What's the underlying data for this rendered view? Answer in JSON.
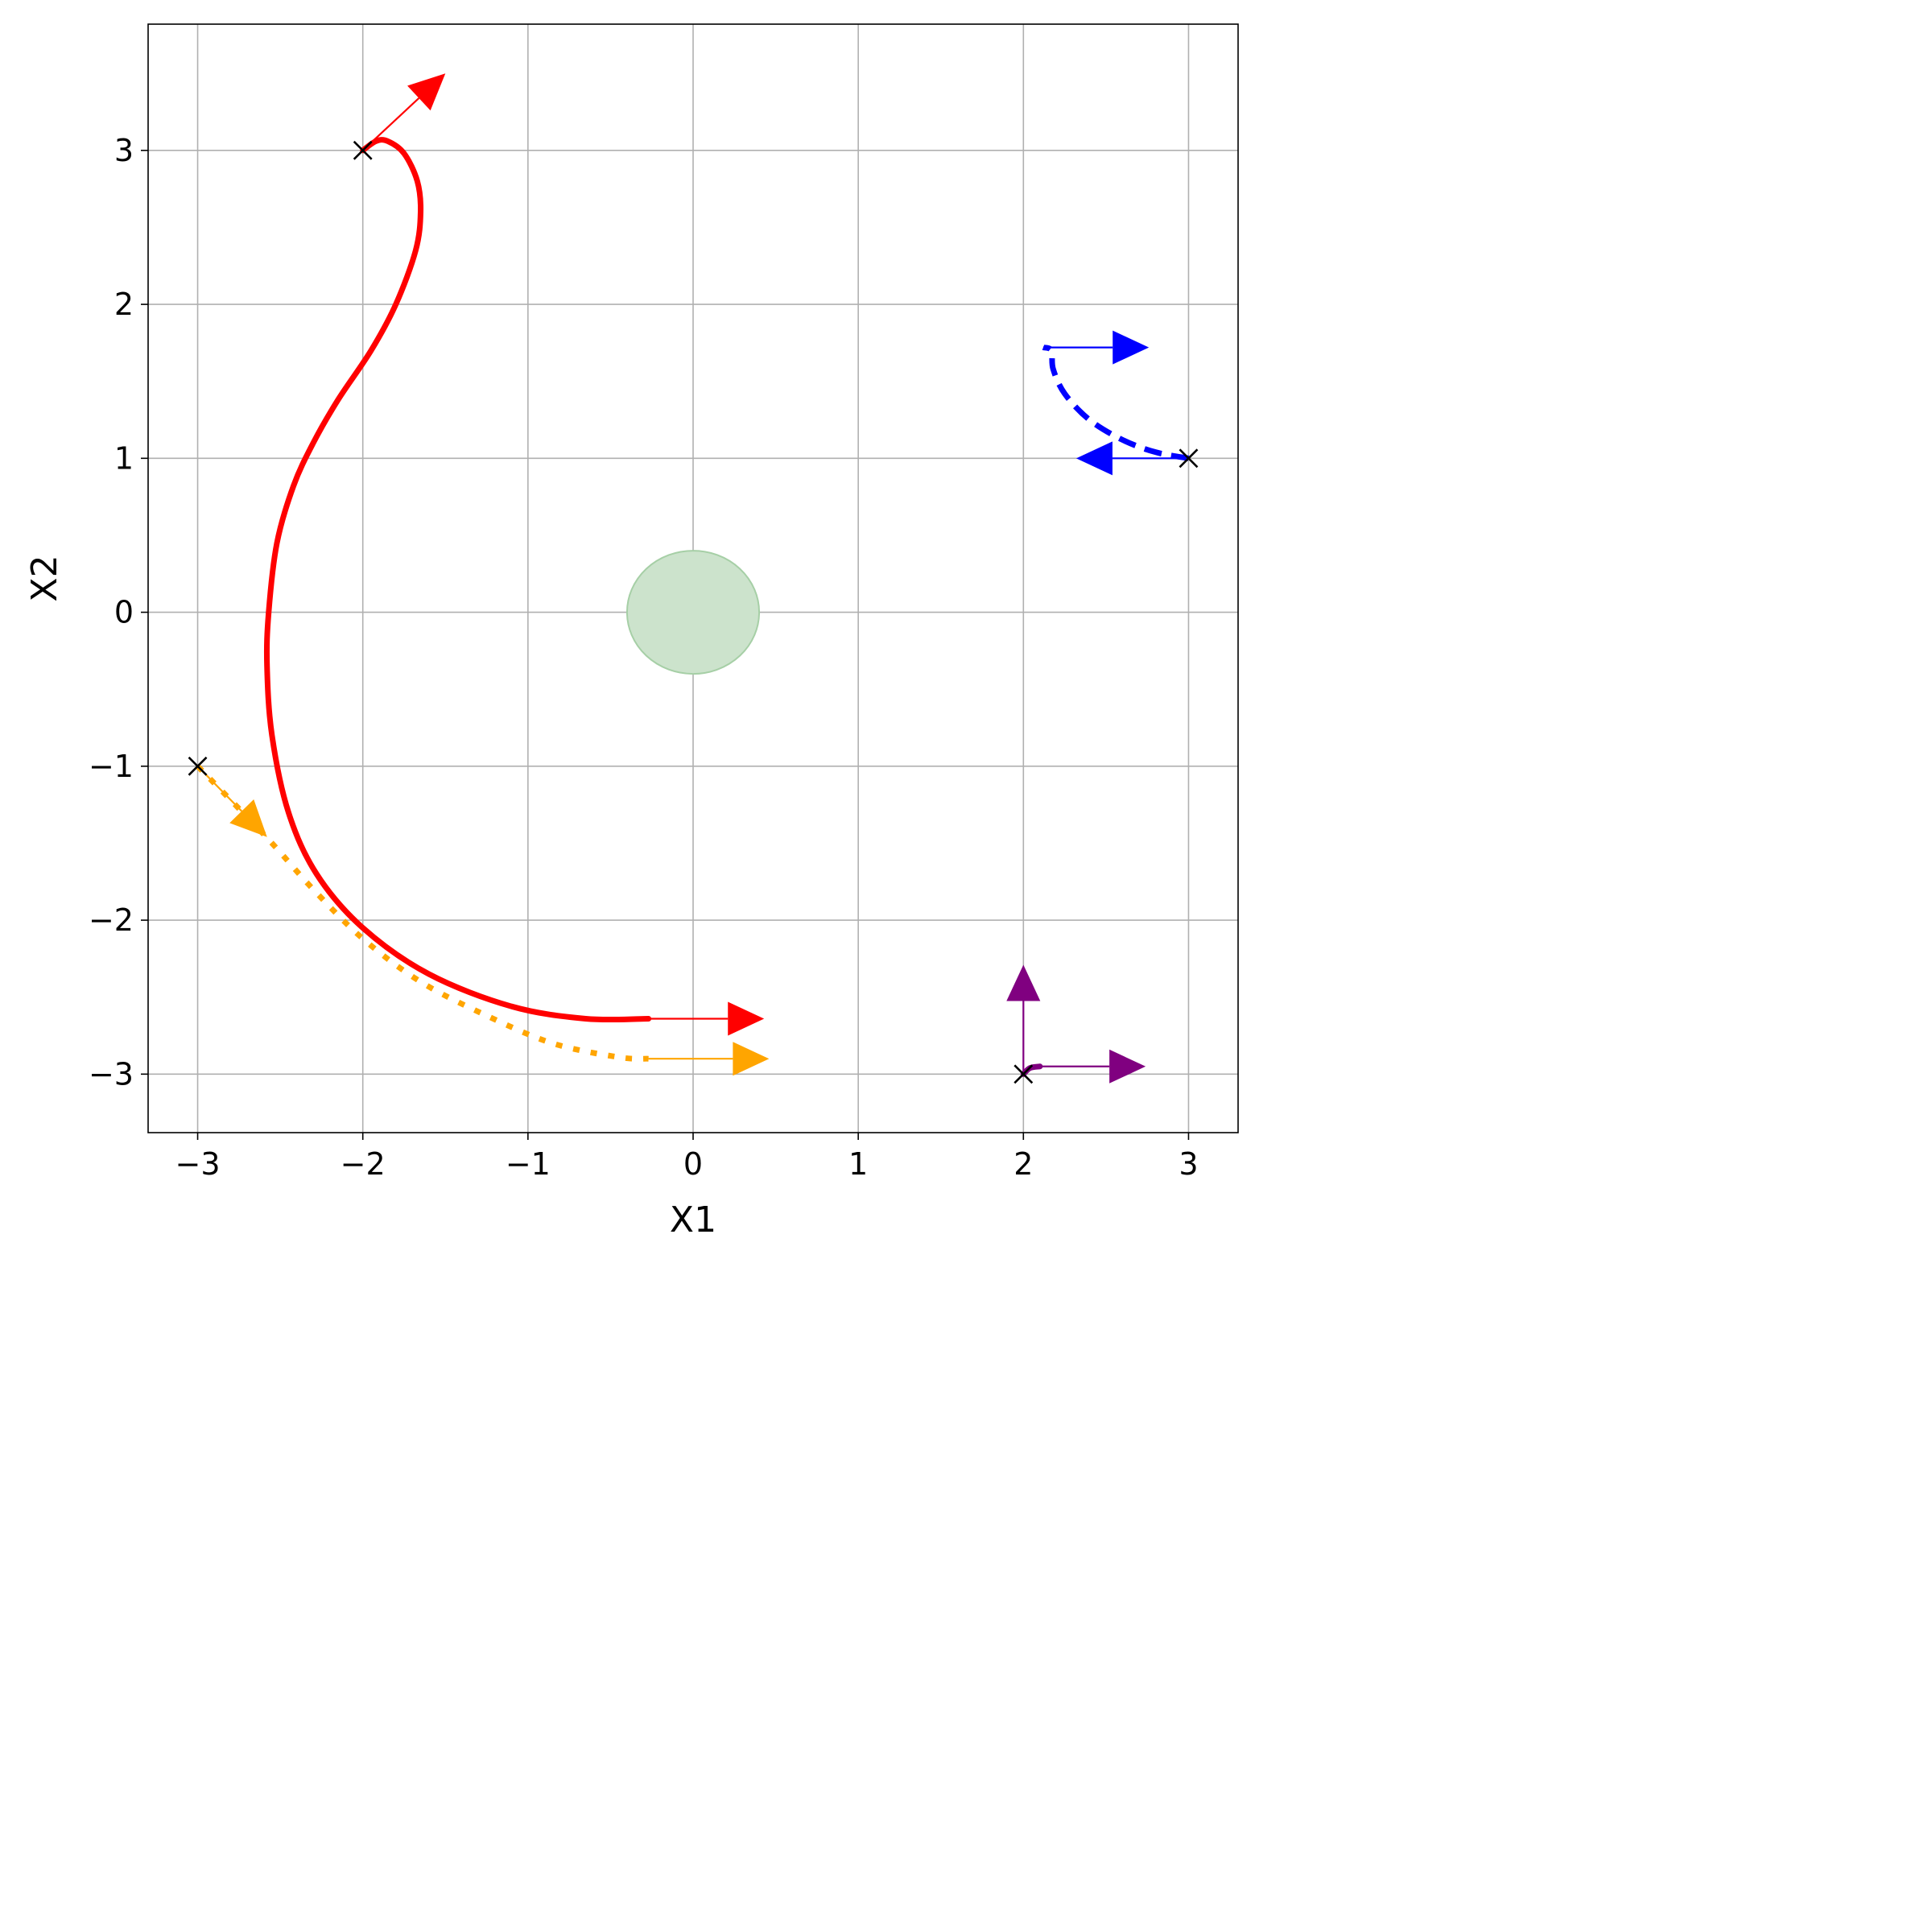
{
  "chart_data": {
    "type": "line",
    "title": "",
    "xlabel": "X1",
    "ylabel": "X2",
    "xlim": [
      -3.3,
      3.3
    ],
    "ylim": [
      -3.38,
      3.82
    ],
    "grid": true,
    "xticks": [
      -3,
      -2,
      -1,
      0,
      1,
      2,
      3
    ],
    "yticks": [
      -3,
      -2,
      -1,
      0,
      1,
      2,
      3
    ],
    "xtick_labels": [
      "−3",
      "−2",
      "−1",
      "0",
      "1",
      "2",
      "3"
    ],
    "ytick_labels": [
      "−3",
      "−2",
      "−1",
      "0",
      "1",
      "2",
      "3"
    ],
    "obstacle": {
      "center": [
        0,
        0
      ],
      "rx": 0.4,
      "ry": 0.4,
      "color": "#cce3cc",
      "edge": "#a6cfa6"
    },
    "start_marker_color": "#000000",
    "series": [
      {
        "color": "#ff0000",
        "style": "solid",
        "start": [
          -2,
          3
        ],
        "points": [
          [
            -2,
            3.0
          ],
          [
            -1.92,
            3.06
          ],
          [
            -1.85,
            3.06
          ],
          [
            -1.75,
            2.98
          ],
          [
            -1.67,
            2.8
          ],
          [
            -1.65,
            2.6
          ],
          [
            -1.68,
            2.35
          ],
          [
            -1.8,
            2.0
          ],
          [
            -1.95,
            1.7
          ],
          [
            -2.15,
            1.38
          ],
          [
            -2.3,
            1.1
          ],
          [
            -2.42,
            0.82
          ],
          [
            -2.52,
            0.45
          ],
          [
            -2.57,
            0.0
          ],
          [
            -2.58,
            -0.35
          ],
          [
            -2.55,
            -0.8
          ],
          [
            -2.45,
            -1.3
          ],
          [
            -2.28,
            -1.7
          ],
          [
            -2.0,
            -2.05
          ],
          [
            -1.6,
            -2.35
          ],
          [
            -1.1,
            -2.56
          ],
          [
            -0.65,
            -2.64
          ],
          [
            -0.27,
            -2.64
          ]
        ],
        "arrows": [
          {
            "from": [
              -2,
              3
            ],
            "to": [
              -1.5,
              3.5
            ]
          },
          {
            "from": [
              -0.27,
              -2.64
            ],
            "to": [
              0.43,
              -2.64
            ]
          }
        ]
      },
      {
        "color": "#ffa500",
        "style": "dotted",
        "start": [
          -3,
          -1
        ],
        "points": [
          [
            -3,
            -1.0
          ],
          [
            -2.8,
            -1.22
          ],
          [
            -2.55,
            -1.5
          ],
          [
            -2.3,
            -1.8
          ],
          [
            -2.0,
            -2.12
          ],
          [
            -1.65,
            -2.4
          ],
          [
            -1.25,
            -2.62
          ],
          [
            -0.85,
            -2.8
          ],
          [
            -0.45,
            -2.89
          ],
          [
            -0.27,
            -2.9
          ]
        ],
        "arrows": [
          {
            "from": [
              -3,
              -1
            ],
            "to": [
              -2.58,
              -1.46
            ]
          },
          {
            "from": [
              -0.27,
              -2.9
            ],
            "to": [
              0.46,
              -2.9
            ]
          }
        ]
      },
      {
        "color": "#0000ff",
        "style": "dashed",
        "start": [
          3,
          1
        ],
        "points": [
          [
            3,
            1.0
          ],
          [
            2.8,
            1.04
          ],
          [
            2.6,
            1.12
          ],
          [
            2.4,
            1.25
          ],
          [
            2.25,
            1.42
          ],
          [
            2.18,
            1.58
          ],
          [
            2.17,
            1.7
          ],
          [
            2.12,
            1.72
          ]
        ],
        "arrows": [
          {
            "from": [
              3,
              1
            ],
            "to": [
              2.32,
              1.0
            ]
          },
          {
            "from": [
              2.12,
              1.72
            ],
            "to": [
              2.76,
              1.72
            ]
          }
        ]
      },
      {
        "color": "#800080",
        "style": "solid",
        "start": [
          2,
          -3
        ],
        "points": [
          [
            2,
            -3.0
          ],
          [
            2.04,
            -2.96
          ],
          [
            2.1,
            -2.95
          ]
        ],
        "arrows": [
          {
            "from": [
              2,
              -3
            ],
            "to": [
              2,
              -2.29
            ]
          },
          {
            "from": [
              2.1,
              -2.95
            ],
            "to": [
              2.74,
              -2.95
            ]
          }
        ]
      }
    ]
  }
}
